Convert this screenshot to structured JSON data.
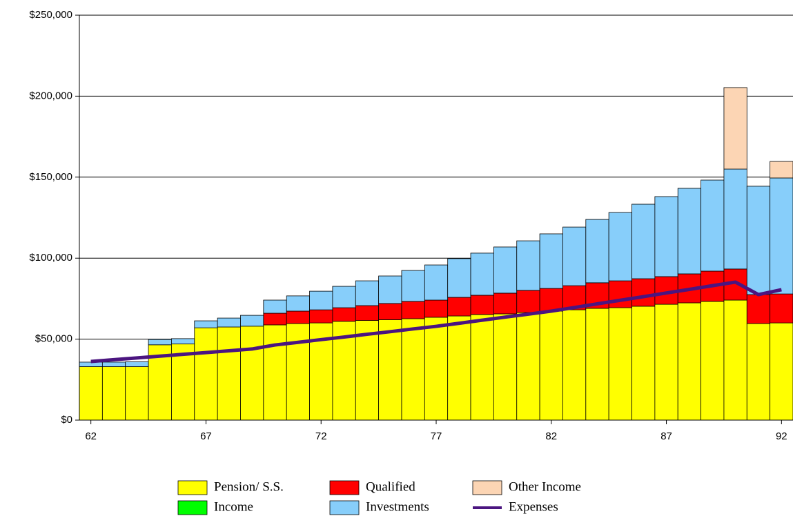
{
  "chart_data": {
    "type": "bar",
    "x": [
      62,
      63,
      64,
      65,
      66,
      67,
      68,
      69,
      70,
      71,
      72,
      73,
      74,
      75,
      76,
      77,
      78,
      79,
      80,
      81,
      82,
      83,
      84,
      85,
      86,
      87,
      88,
      89,
      90,
      91,
      92
    ],
    "xlim": [
      61.5,
      92.5
    ],
    "xticks": [
      62,
      67,
      72,
      77,
      82,
      87,
      92
    ],
    "ylim": [
      0,
      250000
    ],
    "yticks": [
      {
        "value": 0,
        "label": "$0"
      },
      {
        "value": 50000,
        "label": "$50,000"
      },
      {
        "value": 100000,
        "label": "$100,000"
      },
      {
        "value": 150000,
        "label": "$150,000"
      },
      {
        "value": 200000,
        "label": "$200,000"
      },
      {
        "value": 250000,
        "label": "$250,000"
      }
    ],
    "grid": true,
    "stacked": true,
    "series": [
      {
        "name": "Pension/ S.S.",
        "color": "#ffff00",
        "values": [
          33000,
          33000,
          33000,
          46500,
          47000,
          57000,
          57500,
          58000,
          58800,
          59600,
          60000,
          61000,
          61500,
          62000,
          62600,
          63500,
          64300,
          65200,
          65600,
          66400,
          67300,
          68100,
          69000,
          69400,
          70300,
          71500,
          72400,
          73300,
          74100,
          59600,
          60000
        ]
      },
      {
        "name": "Income",
        "color": "#00ff00",
        "values": [
          0,
          0,
          0,
          0,
          0,
          0,
          0,
          0,
          0,
          0,
          0,
          0,
          0,
          0,
          0,
          0,
          0,
          0,
          0,
          0,
          0,
          0,
          0,
          0,
          0,
          0,
          0,
          0,
          0,
          0,
          0
        ]
      },
      {
        "name": "Qualified",
        "color": "#ff0000",
        "values": [
          0,
          0,
          0,
          0,
          0,
          0,
          0,
          0,
          7200,
          7700,
          8100,
          8400,
          9200,
          10000,
          10700,
          10600,
          11500,
          11900,
          12800,
          13700,
          14000,
          14900,
          15800,
          16600,
          17000,
          17100,
          17900,
          18700,
          19200,
          17900,
          17900
        ]
      },
      {
        "name": "Investments",
        "color": "#87cefa",
        "values": [
          2800,
          2800,
          3000,
          3300,
          3300,
          4300,
          5500,
          6700,
          8100,
          9400,
          11500,
          13200,
          15300,
          17000,
          19100,
          21700,
          23900,
          26000,
          28500,
          30600,
          33700,
          36200,
          39100,
          42200,
          46000,
          49400,
          52800,
          56200,
          61700,
          66900,
          71600
        ]
      },
      {
        "name": "Other Income",
        "color": "#fcd5b4",
        "values": [
          0,
          0,
          0,
          0,
          0,
          0,
          0,
          0,
          0,
          0,
          0,
          0,
          0,
          0,
          0,
          0,
          0,
          0,
          0,
          0,
          0,
          0,
          0,
          0,
          0,
          0,
          0,
          0,
          50300,
          0,
          10200
        ]
      },
      {
        "name": "Expenses",
        "color": "#4b1580",
        "type": "line",
        "values": [
          36200,
          37300,
          38400,
          39500,
          40600,
          41700,
          42800,
          43900,
          46400,
          48000,
          49700,
          51300,
          53000,
          54600,
          56300,
          57900,
          59800,
          61700,
          63600,
          65400,
          67300,
          69500,
          71800,
          74000,
          76200,
          78500,
          80700,
          83000,
          85200,
          77500,
          80500
        ]
      }
    ]
  }
}
